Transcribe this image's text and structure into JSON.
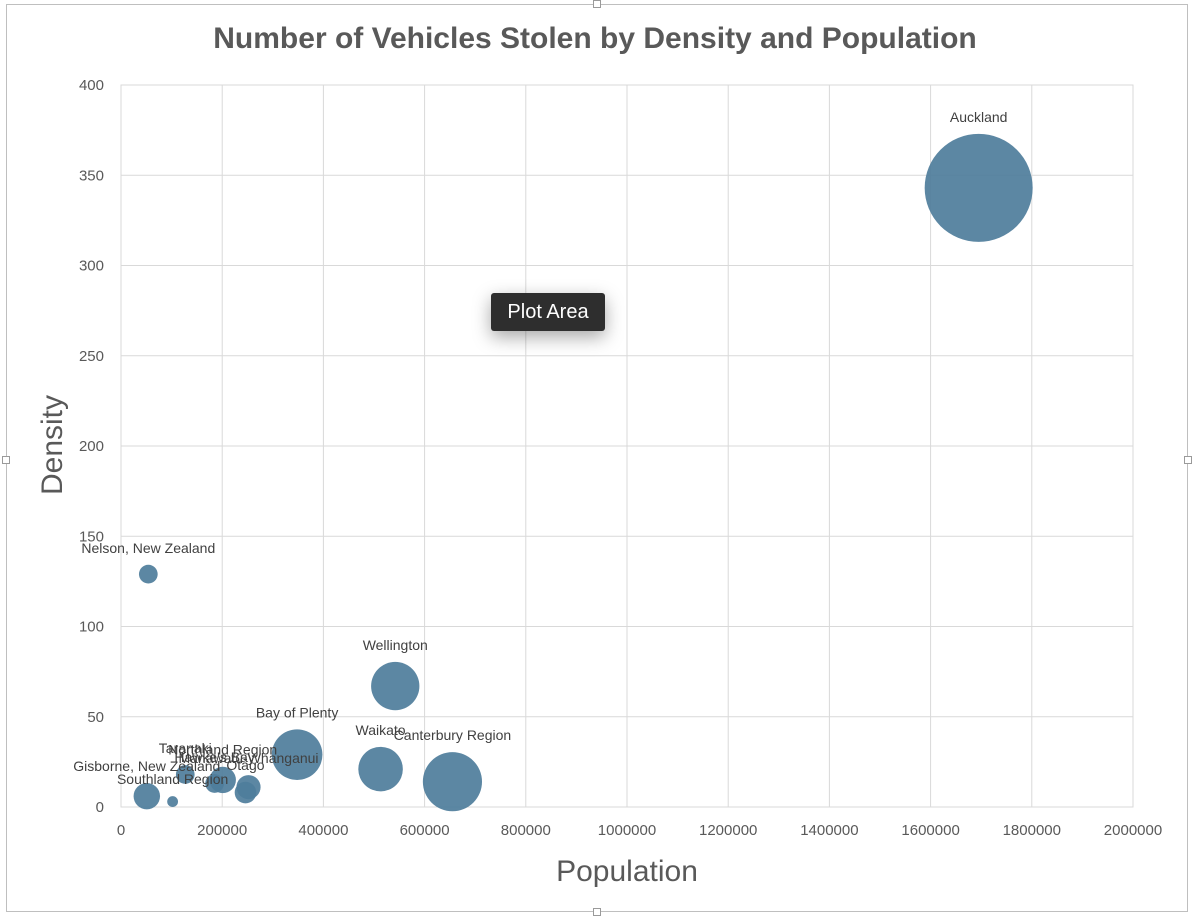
{
  "chart_data": {
    "type": "bubble",
    "title": "Number of Vehicles Stolen by Density and Population",
    "xlabel": "Population",
    "ylabel": "Density",
    "xlim": [
      0,
      2000000
    ],
    "ylim": [
      0,
      400
    ],
    "x_ticks": [
      "0",
      "200000",
      "400000",
      "600000",
      "800000",
      "1000000",
      "1200000",
      "1400000",
      "1600000",
      "1800000",
      "2000000"
    ],
    "y_ticks": [
      "0",
      "50",
      "100",
      "150",
      "200",
      "250",
      "300",
      "350",
      "400"
    ],
    "grid": true,
    "legend": "none",
    "bubble_color": "#4e7d9b",
    "points": [
      {
        "label": "Auckland",
        "x": 1695000,
        "y": 343,
        "size": 100
      },
      {
        "label": "Nelson, New Zealand",
        "x": 54000,
        "y": 129,
        "size": 3
      },
      {
        "label": "Wellington",
        "x": 542000,
        "y": 67,
        "size": 20
      },
      {
        "label": "Bay of Plenty",
        "x": 348000,
        "y": 29,
        "size": 22
      },
      {
        "label": "Waikato",
        "x": 513000,
        "y": 21,
        "size": 17
      },
      {
        "label": "Canterbury Region",
        "x": 655000,
        "y": 14,
        "size": 30
      },
      {
        "label": "Manawatū-Whanganui",
        "x": 252000,
        "y": 11,
        "size": 5
      },
      {
        "label": "Northland Region",
        "x": 201000,
        "y": 15,
        "size": 6
      },
      {
        "label": "Taranaki",
        "x": 127000,
        "y": 18,
        "size": 3
      },
      {
        "label": "Hawke's Bay",
        "x": 185000,
        "y": 13,
        "size": 3
      },
      {
        "label": "Otago",
        "x": 246000,
        "y": 8,
        "size": 4
      },
      {
        "label": "Gisborne, New Zealand",
        "x": 51000,
        "y": 6,
        "size": 6
      },
      {
        "label": "Southland Region",
        "x": 102000,
        "y": 3,
        "size": 1
      }
    ]
  },
  "tooltip": {
    "text": "Plot Area"
  }
}
